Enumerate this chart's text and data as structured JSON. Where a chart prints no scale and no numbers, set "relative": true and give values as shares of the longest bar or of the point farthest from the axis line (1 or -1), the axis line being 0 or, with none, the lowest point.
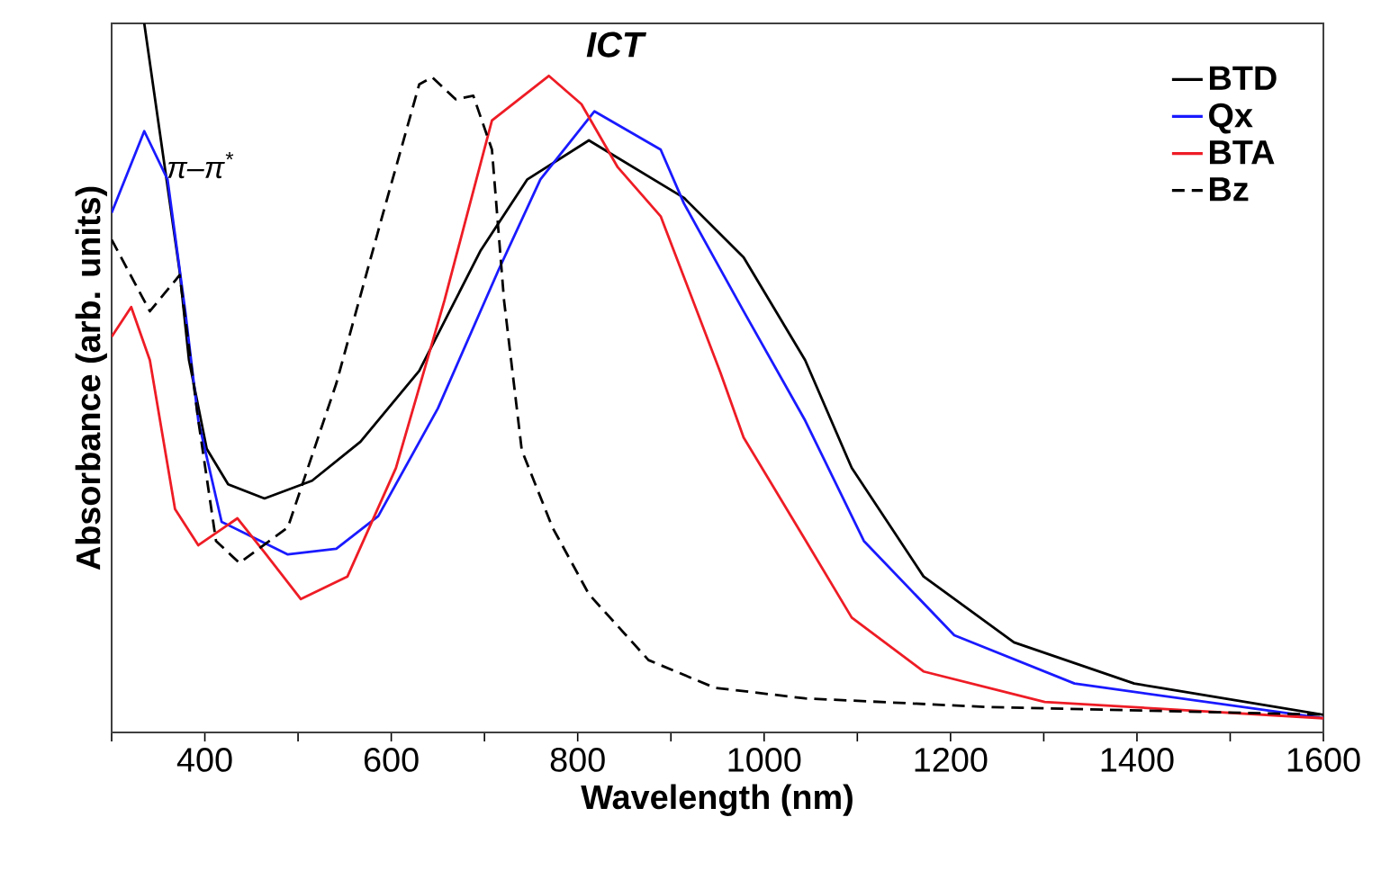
{
  "chart_data": {
    "type": "line",
    "relative": true,
    "xlabel": "Wavelength (nm)",
    "ylabel": "Absorbance (arb. units)",
    "xlim": [
      300,
      1600
    ],
    "xticks": [
      {
        "value": 300,
        "label": null
      },
      400,
      {
        "value": 500,
        "label": null
      },
      600,
      {
        "value": 700,
        "label": null
      },
      800,
      {
        "value": 900,
        "label": null
      },
      1000,
      {
        "value": 1100,
        "label": null
      },
      1200,
      {
        "value": 1300,
        "label": null
      },
      1400,
      {
        "value": 1500,
        "label": null
      },
      1600
    ],
    "legend": "top right",
    "grid": false,
    "annotations": [
      "π–π$^{*}$",
      "ICT"
    ],
    "series": [
      {
        "name": "BTD",
        "color": "#000000",
        "line_style": "solid",
        "x": [
          335,
          373,
          383,
          402,
          425,
          464,
          515,
          567,
          630,
          696,
          746,
          812,
          914,
          978,
          1044,
          1094,
          1171,
          1268,
          1397,
          1600
        ],
        "values": [
          1.0,
          0.65,
          0.525,
          0.4,
          0.35,
          0.33,
          0.355,
          0.41,
          0.51,
          0.68,
          0.78,
          0.835,
          0.754,
          0.67,
          0.525,
          0.373,
          0.22,
          0.127,
          0.069,
          0.025
        ]
      },
      {
        "name": "Qx",
        "color": "#1a1aff",
        "line_style": "solid",
        "x": [
          300,
          335,
          360,
          379,
          393,
          418,
          489,
          541,
          586,
          650,
          715,
          760,
          818,
          889,
          914,
          978,
          1044,
          1107,
          1204,
          1333,
          1600
        ],
        "values": [
          0.733,
          0.848,
          0.78,
          0.594,
          0.44,
          0.297,
          0.251,
          0.259,
          0.305,
          0.457,
          0.652,
          0.78,
          0.876,
          0.822,
          0.746,
          0.594,
          0.44,
          0.27,
          0.137,
          0.069,
          0.02
        ]
      },
      {
        "name": "BTA",
        "color": "#ee1c25",
        "line_style": "solid",
        "x": [
          300,
          321,
          341,
          368,
          393,
          435,
          464,
          503,
          553,
          605,
          657,
          708,
          769,
          804,
          843,
          889,
          953,
          978,
          1044,
          1094,
          1171,
          1301,
          1600
        ],
        "values": [
          0.558,
          0.6,
          0.525,
          0.315,
          0.264,
          0.302,
          0.254,
          0.188,
          0.22,
          0.373,
          0.609,
          0.863,
          0.926,
          0.886,
          0.797,
          0.728,
          0.508,
          0.416,
          0.272,
          0.162,
          0.086,
          0.043,
          0.02
        ]
      },
      {
        "name": "Bz",
        "color": "#000000",
        "line_style": "dashed",
        "x": [
          300,
          341,
          373,
          393,
          412,
          437,
          489,
          541,
          592,
          630,
          644,
          669,
          688,
          708,
          721,
          740,
          773,
          812,
          876,
          947,
          1044,
          1237,
          1600
        ],
        "values": [
          0.695,
          0.594,
          0.645,
          0.44,
          0.27,
          0.239,
          0.289,
          0.492,
          0.736,
          0.914,
          0.924,
          0.893,
          0.898,
          0.822,
          0.609,
          0.398,
          0.289,
          0.195,
          0.102,
          0.063,
          0.048,
          0.036,
          0.025
        ]
      }
    ]
  }
}
